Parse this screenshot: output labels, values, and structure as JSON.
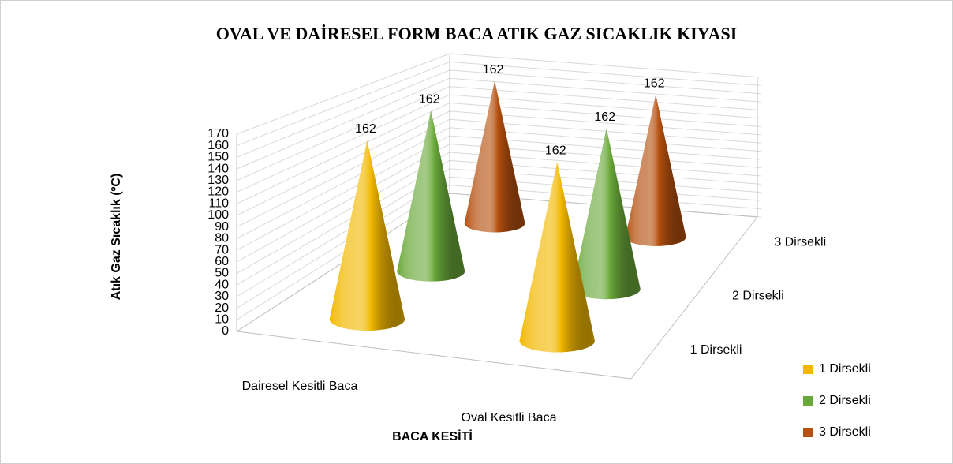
{
  "chart_data": {
    "type": "cone3d",
    "title": "OVAL VE DAİRESEL  FORM   BACA ATIK GAZ SICAKLIK KIYASI",
    "y_label": "Atık Gaz Sıcaklık (ºC)",
    "x_label": "BACA KESİTİ",
    "categories": [
      "Dairesel Kesitli Baca",
      "Oval Kesitli Baca"
    ],
    "series": [
      {
        "name": "1 Dirsekli",
        "color": "#f2b800",
        "values": [
          162,
          162
        ]
      },
      {
        "name": "2 Dirsekli",
        "color": "#6aa83a",
        "values": [
          162,
          162
        ]
      },
      {
        "name": "3 Dirsekli",
        "color": "#b5500f",
        "values": [
          162,
          162
        ]
      }
    ],
    "ylim": [
      0,
      170
    ],
    "yticks": [
      0,
      10,
      20,
      30,
      40,
      50,
      60,
      70,
      80,
      90,
      100,
      110,
      120,
      130,
      140,
      150,
      160,
      170
    ],
    "grid": true,
    "legend": "right"
  }
}
